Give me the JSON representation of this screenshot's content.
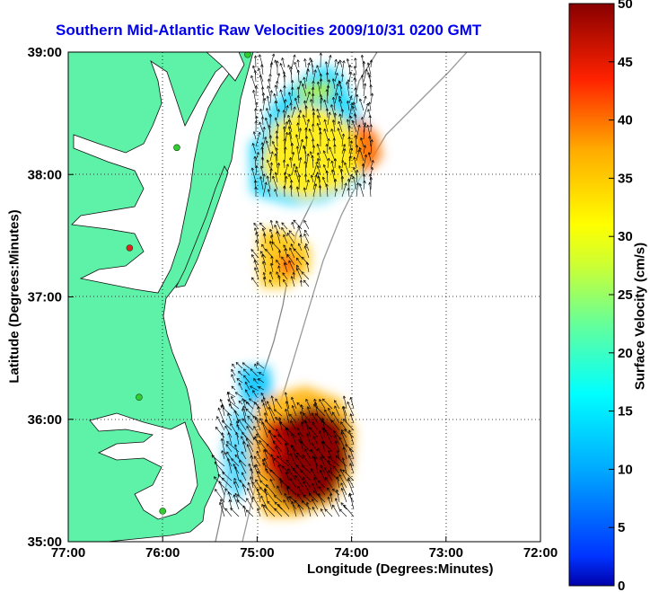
{
  "title": "Southern Mid-Atlantic Raw Velocities 2009/10/31 0200 GMT",
  "map": {
    "xlabel": "Longitude (Degrees:Minutes)",
    "ylabel": "Latitude (Degrees:Minutes)",
    "lon_ticks": [
      "77:00",
      "76:00",
      "75:00",
      "74:00",
      "73:00",
      "72:00"
    ],
    "lat_ticks": [
      "39:00",
      "38:00",
      "37:00",
      "36:00",
      "35:00"
    ],
    "lon_range": [
      -77,
      -72
    ],
    "lat_range": [
      35,
      39
    ],
    "land_color": "#5ef2a8",
    "grid": "dotted"
  },
  "colorbar": {
    "label": "Surface Velocity (cm/s)",
    "ticks": [
      "0",
      "5",
      "10",
      "15",
      "20",
      "25",
      "30",
      "35",
      "40",
      "45",
      "50"
    ],
    "range": [
      0,
      50
    ],
    "colormap": "jet"
  },
  "stations": [
    {
      "lon": -75.1,
      "lat": 38.98,
      "color": "#33cc33"
    },
    {
      "lon": -75.85,
      "lat": 38.22,
      "color": "#33cc33"
    },
    {
      "lon": -76.35,
      "lat": 37.4,
      "color": "#dd2222"
    },
    {
      "lon": -76.25,
      "lat": 36.18,
      "color": "#33cc33"
    },
    {
      "lon": -76.0,
      "lat": 35.25,
      "color": "#33cc33"
    }
  ]
}
